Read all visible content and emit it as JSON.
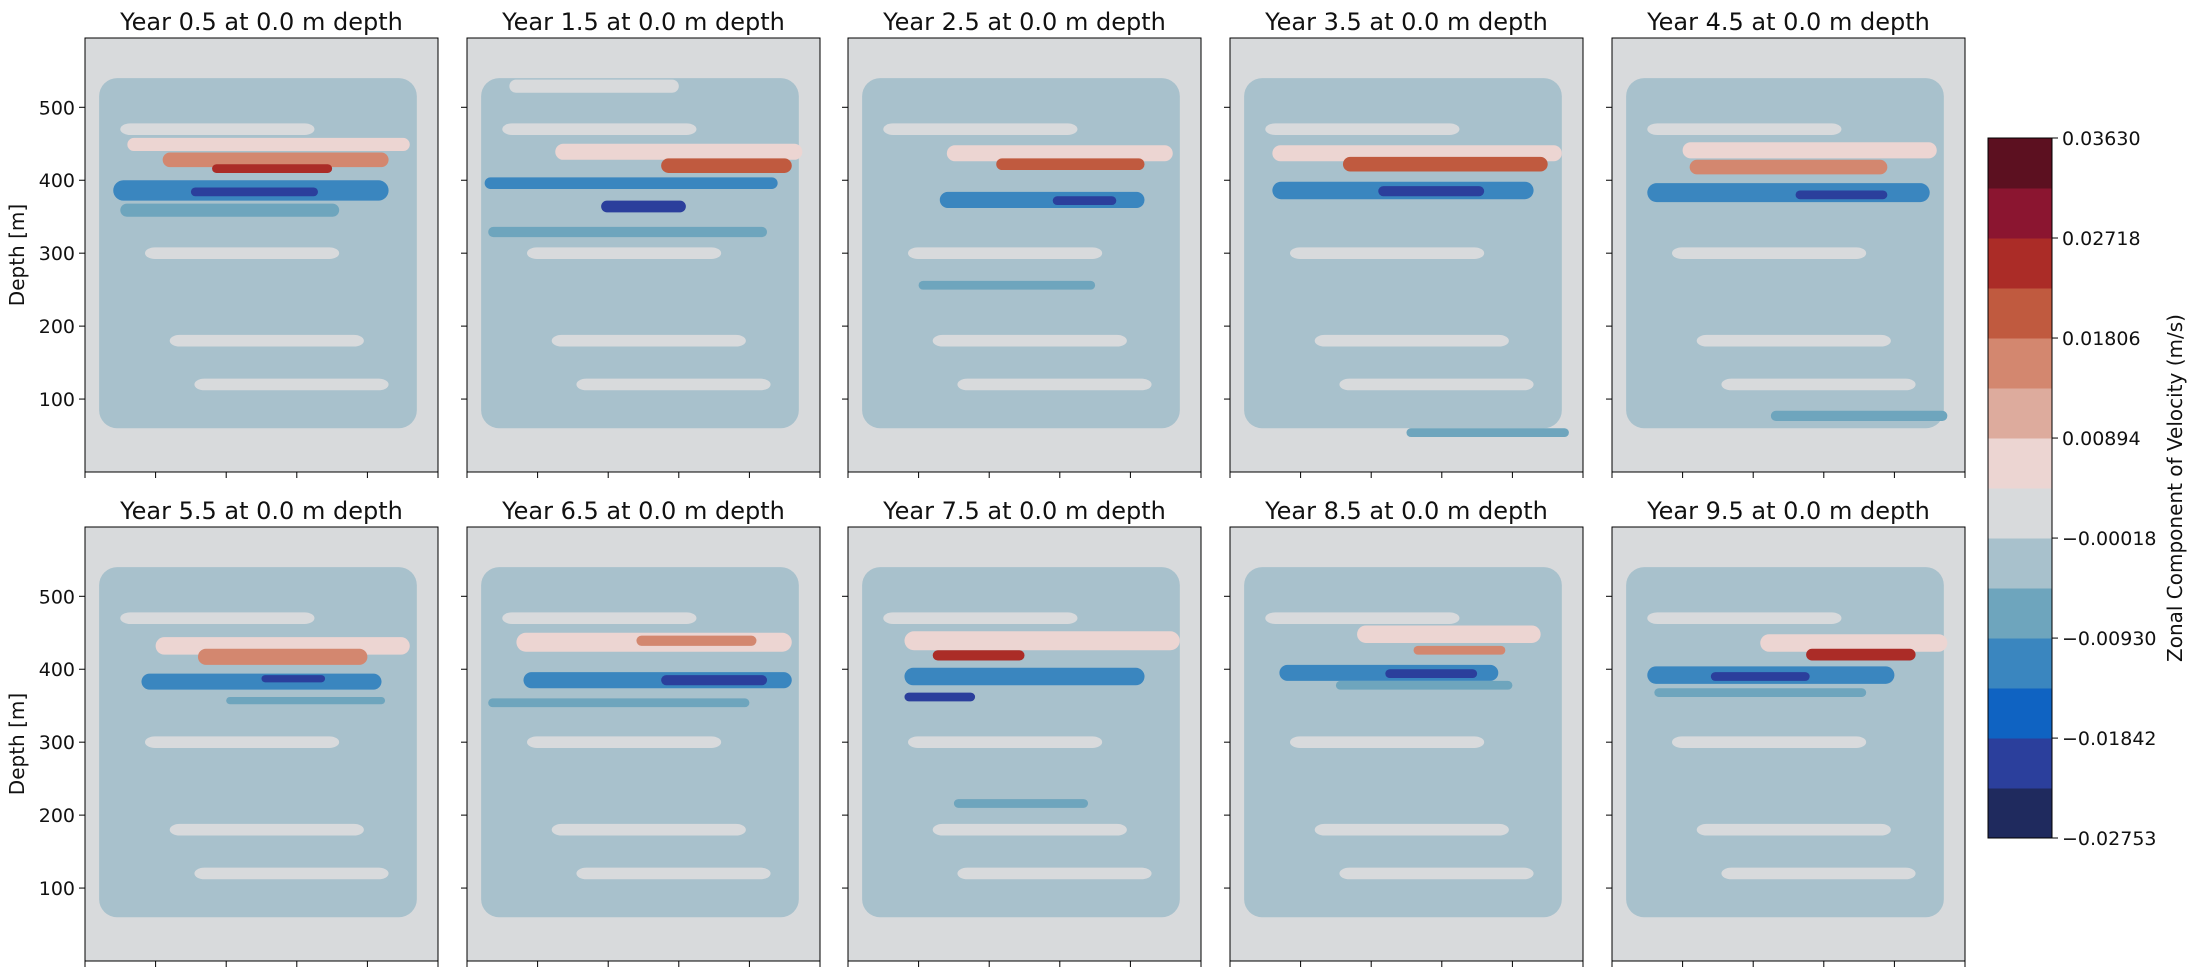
{
  "chart_data": {
    "type": "heatmap",
    "panel_titles": [
      "Year 0.5 at 0.0 m depth",
      "Year 1.5 at 0.0 m depth",
      "Year 2.5 at 0.0 m depth",
      "Year 3.5 at 0.0 m depth",
      "Year 4.5 at 0.0 m depth",
      "Year 5.5 at 0.0 m depth",
      "Year 6.5 at 0.0 m depth",
      "Year 7.5 at 0.0 m depth",
      "Year 8.5 at 0.0 m depth",
      "Year 9.5 at 0.0 m depth"
    ],
    "ylabel": "Depth [m]",
    "y_ticks": [
      "100",
      "200",
      "300",
      "400",
      "500"
    ],
    "y_tick_values": [
      100,
      200,
      300,
      400,
      500
    ],
    "ylim": [
      0,
      595
    ],
    "colorbar": {
      "label": "Zonal Component of Velocity (m/s)",
      "tick_labels": [
        "0.03630",
        "0.02718",
        "0.01806",
        "0.00894",
        "−0.00018",
        "−0.00930",
        "−0.01842",
        "−0.02753"
      ],
      "tick_values": [
        0.0363,
        0.02718,
        0.01806,
        0.00894,
        -0.00018,
        -0.0093,
        -0.01842,
        -0.02753
      ],
      "range": [
        -0.02753,
        0.0363
      ],
      "colors": [
        "#1f2a5e",
        "#2b3f9c",
        "#0f63c2",
        "#3a86bf",
        "#6ea5bd",
        "#a8c1cc",
        "#d8dadc",
        "#ecd5d2",
        "#ddab9d",
        "#d3876f",
        "#c05a3f",
        "#ab2c27",
        "#8b1530",
        "#5c1020"
      ]
    },
    "panels": [
      {
        "bands": [
          {
            "c": 0.0072,
            "y0": 440,
            "y1": 458,
            "x0": 0.12,
            "x1": 0.92
          },
          {
            "c": 0.0158,
            "y0": 418,
            "y1": 438,
            "x0": 0.22,
            "x1": 0.86
          },
          {
            "c": 0.0259,
            "y0": 410,
            "y1": 422,
            "x0": 0.36,
            "x1": 0.7
          },
          {
            "c": -0.0137,
            "y0": 372,
            "y1": 400,
            "x0": 0.08,
            "x1": 0.86
          },
          {
            "c": -0.0228,
            "y0": 378,
            "y1": 390,
            "x0": 0.3,
            "x1": 0.66
          },
          {
            "c": -0.0048,
            "y0": 350,
            "y1": 368,
            "x0": 0.1,
            "x1": 0.72
          }
        ]
      },
      {
        "bands": [
          {
            "c": 0.0072,
            "y0": 428,
            "y1": 450,
            "x0": 0.25,
            "x1": 0.95
          },
          {
            "c": 0.0204,
            "y0": 410,
            "y1": 430,
            "x0": 0.55,
            "x1": 0.92
          },
          {
            "c": -0.0137,
            "y0": 388,
            "y1": 404,
            "x0": 0.05,
            "x1": 0.88
          },
          {
            "c": -0.0228,
            "y0": 356,
            "y1": 372,
            "x0": 0.38,
            "x1": 0.62
          },
          {
            "c": -0.0048,
            "y0": 322,
            "y1": 336,
            "x0": 0.06,
            "x1": 0.85
          },
          {
            "c": 0.0028,
            "y0": 520,
            "y1": 538,
            "x0": 0.12,
            "x1": 0.6
          }
        ]
      },
      {
        "bands": [
          {
            "c": 0.0072,
            "y0": 426,
            "y1": 448,
            "x0": 0.28,
            "x1": 0.92
          },
          {
            "c": 0.0204,
            "y0": 414,
            "y1": 430,
            "x0": 0.42,
            "x1": 0.84
          },
          {
            "c": -0.0137,
            "y0": 362,
            "y1": 384,
            "x0": 0.26,
            "x1": 0.84
          },
          {
            "c": -0.0228,
            "y0": 366,
            "y1": 378,
            "x0": 0.58,
            "x1": 0.76
          },
          {
            "c": -0.0048,
            "y0": 250,
            "y1": 262,
            "x0": 0.2,
            "x1": 0.7
          }
        ]
      },
      {
        "bands": [
          {
            "c": 0.0072,
            "y0": 426,
            "y1": 448,
            "x0": 0.12,
            "x1": 0.94
          },
          {
            "c": 0.0204,
            "y0": 412,
            "y1": 432,
            "x0": 0.32,
            "x1": 0.9
          },
          {
            "c": -0.0137,
            "y0": 374,
            "y1": 398,
            "x0": 0.12,
            "x1": 0.86
          },
          {
            "c": -0.0228,
            "y0": 378,
            "y1": 392,
            "x0": 0.42,
            "x1": 0.72
          },
          {
            "c": -0.0048,
            "y0": 48,
            "y1": 60,
            "x0": 0.5,
            "x1": 0.96
          }
        ]
      },
      {
        "bands": [
          {
            "c": 0.0072,
            "y0": 430,
            "y1": 452,
            "x0": 0.2,
            "x1": 0.92
          },
          {
            "c": 0.0158,
            "y0": 408,
            "y1": 428,
            "x0": 0.22,
            "x1": 0.78
          },
          {
            "c": -0.0137,
            "y0": 370,
            "y1": 396,
            "x0": 0.1,
            "x1": 0.9
          },
          {
            "c": -0.0228,
            "y0": 374,
            "y1": 386,
            "x0": 0.52,
            "x1": 0.78
          },
          {
            "c": -0.0048,
            "y0": 70,
            "y1": 84,
            "x0": 0.45,
            "x1": 0.95
          }
        ]
      },
      {
        "bands": [
          {
            "c": 0.0072,
            "y0": 420,
            "y1": 444,
            "x0": 0.2,
            "x1": 0.92
          },
          {
            "c": 0.0158,
            "y0": 406,
            "y1": 428,
            "x0": 0.32,
            "x1": 0.8
          },
          {
            "c": -0.0137,
            "y0": 372,
            "y1": 394,
            "x0": 0.16,
            "x1": 0.84
          },
          {
            "c": -0.0228,
            "y0": 382,
            "y1": 392,
            "x0": 0.5,
            "x1": 0.68
          },
          {
            "c": -0.0048,
            "y0": 352,
            "y1": 362,
            "x0": 0.4,
            "x1": 0.85
          }
        ]
      },
      {
        "bands": [
          {
            "c": 0.0072,
            "y0": 424,
            "y1": 450,
            "x0": 0.14,
            "x1": 0.92
          },
          {
            "c": 0.0158,
            "y0": 432,
            "y1": 446,
            "x0": 0.48,
            "x1": 0.82
          },
          {
            "c": -0.0137,
            "y0": 374,
            "y1": 396,
            "x0": 0.16,
            "x1": 0.92
          },
          {
            "c": -0.0228,
            "y0": 378,
            "y1": 392,
            "x0": 0.55,
            "x1": 0.85
          },
          {
            "c": -0.0048,
            "y0": 348,
            "y1": 360,
            "x0": 0.06,
            "x1": 0.8
          }
        ]
      },
      {
        "bands": [
          {
            "c": 0.0072,
            "y0": 426,
            "y1": 452,
            "x0": 0.16,
            "x1": 0.94
          },
          {
            "c": 0.0259,
            "y0": 412,
            "y1": 426,
            "x0": 0.24,
            "x1": 0.5
          },
          {
            "c": -0.0137,
            "y0": 378,
            "y1": 402,
            "x0": 0.16,
            "x1": 0.84
          },
          {
            "c": -0.0228,
            "y0": 356,
            "y1": 368,
            "x0": 0.16,
            "x1": 0.36
          },
          {
            "c": -0.0048,
            "y0": 210,
            "y1": 222,
            "x0": 0.3,
            "x1": 0.68
          }
        ]
      },
      {
        "bands": [
          {
            "c": 0.0072,
            "y0": 436,
            "y1": 460,
            "x0": 0.36,
            "x1": 0.88
          },
          {
            "c": 0.0158,
            "y0": 420,
            "y1": 432,
            "x0": 0.52,
            "x1": 0.78
          },
          {
            "c": -0.0137,
            "y0": 384,
            "y1": 406,
            "x0": 0.14,
            "x1": 0.76
          },
          {
            "c": -0.0228,
            "y0": 388,
            "y1": 400,
            "x0": 0.44,
            "x1": 0.7
          },
          {
            "c": -0.0048,
            "y0": 372,
            "y1": 384,
            "x0": 0.3,
            "x1": 0.8
          }
        ]
      },
      {
        "bands": [
          {
            "c": 0.0072,
            "y0": 424,
            "y1": 448,
            "x0": 0.42,
            "x1": 0.95
          },
          {
            "c": 0.0259,
            "y0": 412,
            "y1": 428,
            "x0": 0.55,
            "x1": 0.86
          },
          {
            "c": -0.0137,
            "y0": 380,
            "y1": 404,
            "x0": 0.1,
            "x1": 0.8
          },
          {
            "c": -0.0228,
            "y0": 384,
            "y1": 396,
            "x0": 0.28,
            "x1": 0.56
          },
          {
            "c": -0.0048,
            "y0": 362,
            "y1": 374,
            "x0": 0.12,
            "x1": 0.72
          }
        ]
      }
    ]
  }
}
